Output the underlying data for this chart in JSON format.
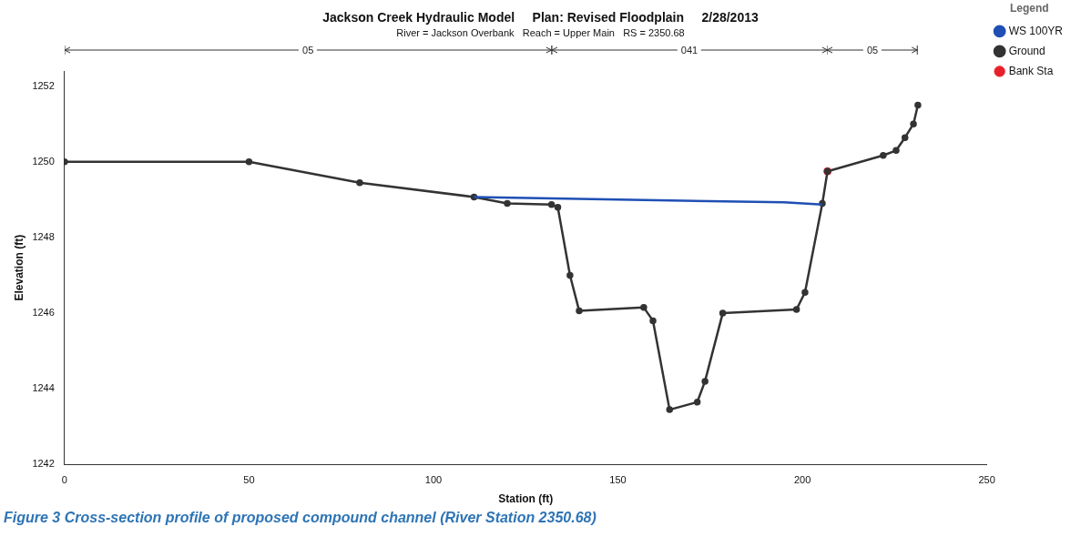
{
  "chart_data": {
    "type": "line",
    "title": "Jackson Creek Hydraulic Model     Plan: Revised Floodplain     2/28/2013",
    "subtitle": "River = Jackson Overbank   Reach = Upper Main   RS = 2350.68",
    "xlabel": "Station (ft)",
    "ylabel": "Elevation (ft)",
    "xlim": [
      0,
      250
    ],
    "xticks": [
      0,
      50,
      100,
      150,
      200,
      250
    ],
    "ylim": [
      1242,
      1252.4
    ],
    "yticks": [
      1242,
      1244,
      1246,
      1248,
      1250,
      1252
    ],
    "grid": false,
    "legend": "right",
    "legend_title": "Legend",
    "series": [
      {
        "name": "WS 100YR",
        "color": "#1f4fb4",
        "marker": "none",
        "x": [
          111,
          150,
          195,
          205.4
        ],
        "values": [
          1249.07,
          1249.0,
          1248.93,
          1248.87
        ]
      },
      {
        "name": "Ground",
        "color": "#333333",
        "marker": "circle",
        "x": [
          0,
          50,
          80,
          111,
          120,
          132,
          133.7,
          137,
          139.5,
          157,
          159.5,
          164,
          171.5,
          173.6,
          178.4,
          198.4,
          200.7,
          205.4,
          206.8,
          221.9,
          225.4,
          227.8,
          230.1,
          231.3
        ],
        "values": [
          1250.0,
          1250.0,
          1249.45,
          1249.07,
          1248.9,
          1248.87,
          1248.8,
          1247.0,
          1246.06,
          1246.15,
          1245.8,
          1243.45,
          1243.65,
          1244.2,
          1246.0,
          1246.1,
          1246.55,
          1248.9,
          1249.75,
          1250.17,
          1250.3,
          1250.64,
          1251.0,
          1251.5
        ]
      },
      {
        "name": "Bank Sta",
        "type": "scatter",
        "color": "#e8202a",
        "marker": "circle",
        "x": [
          206.8
        ],
        "values": [
          1249.75
        ]
      }
    ],
    "annotations": [
      "05",
      "041",
      "05",
      "Figure 3 Cross-section profile of proposed compound channel (River Station 2350.68)"
    ]
  }
}
